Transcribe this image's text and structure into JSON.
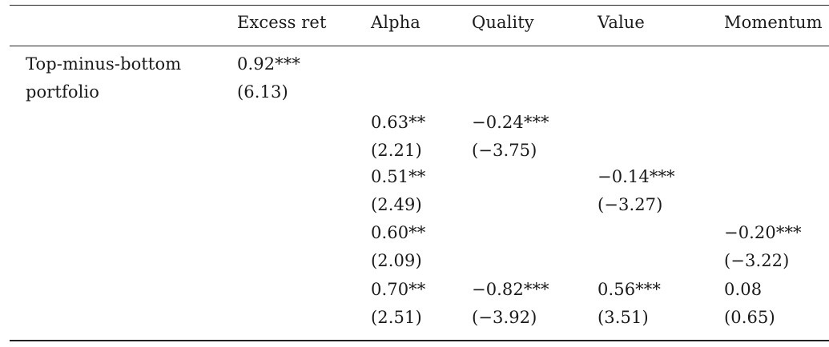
{
  "table": {
    "headers": {
      "excess_ret": "Excess ret",
      "alpha": "Alpha",
      "quality": "Quality",
      "value": "Value",
      "momentum": "Momentum"
    },
    "row_label_line1": "Top-minus-bottom",
    "row_label_line2": "portfolio",
    "rows": [
      {
        "excess_ret": {
          "coef": "0.92***",
          "t": "(6.13)"
        }
      },
      {
        "alpha": {
          "coef": "0.63**",
          "t": "(2.21)"
        },
        "quality": {
          "coef": "−0.24***",
          "t": "(−3.75)"
        }
      },
      {
        "alpha": {
          "coef": "0.51**",
          "t": "(2.49)"
        },
        "value": {
          "coef": "−0.14***",
          "t": "(−3.27)"
        }
      },
      {
        "alpha": {
          "coef": "0.60**",
          "t": "(2.09)"
        },
        "momentum": {
          "coef": "−0.20***",
          "t": "(−3.22)"
        }
      },
      {
        "alpha": {
          "coef": "0.70**",
          "t": "(2.51)"
        },
        "quality": {
          "coef": "−0.82***",
          "t": "(−3.92)"
        },
        "value": {
          "coef": "0.56***",
          "t": "(3.51)"
        },
        "momentum": {
          "coef": "0.08",
          "t": "(0.65)"
        }
      }
    ]
  }
}
